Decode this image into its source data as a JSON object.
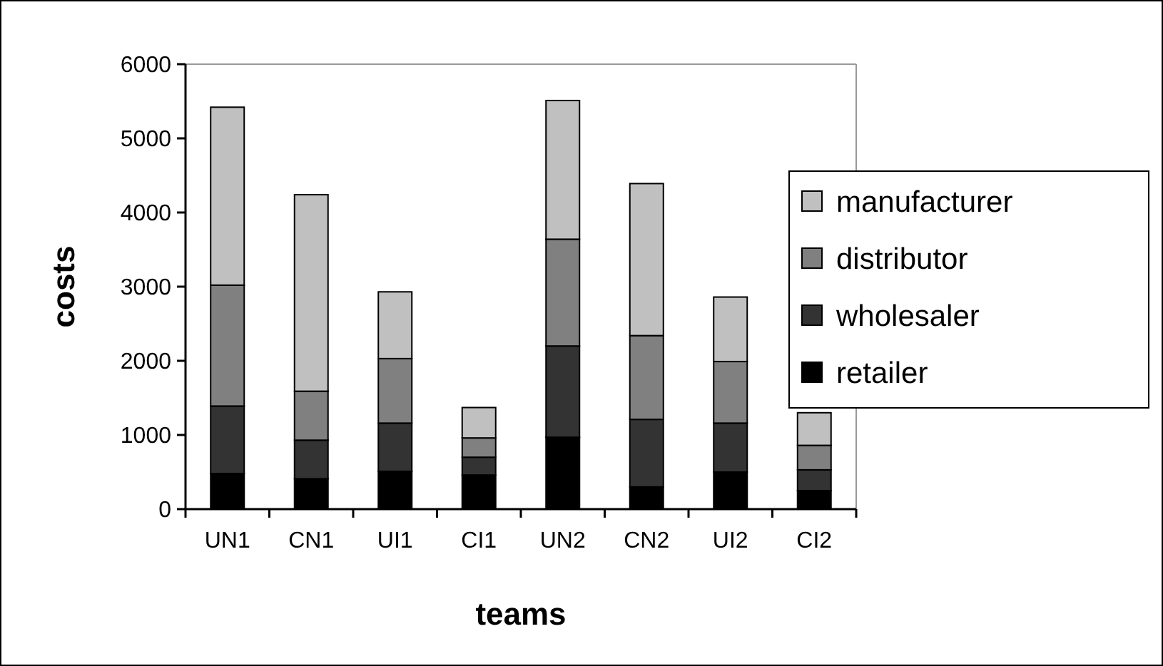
{
  "chart_data": {
    "type": "bar",
    "stacked": true,
    "xlabel": "teams",
    "ylabel": "costs",
    "categories": [
      "UN1",
      "CN1",
      "UI1",
      "CI1",
      "UN2",
      "CN2",
      "UI2",
      "CI2"
    ],
    "series": [
      {
        "name": "retailer",
        "color": "#000000",
        "values": [
          480,
          410,
          510,
          460,
          970,
          300,
          500,
          250
        ]
      },
      {
        "name": "wholesaler",
        "color": "#333333",
        "values": [
          910,
          520,
          650,
          240,
          1230,
          910,
          660,
          280
        ]
      },
      {
        "name": "distributor",
        "color": "#808080",
        "values": [
          1630,
          660,
          870,
          260,
          1440,
          1130,
          830,
          330
        ]
      },
      {
        "name": "manufacturer",
        "color": "#c0c0c0",
        "values": [
          2400,
          2650,
          900,
          410,
          1870,
          2050,
          870,
          440
        ]
      }
    ],
    "ylim": [
      0,
      6000
    ],
    "yticks": [
      0,
      1000,
      2000,
      3000,
      4000,
      5000,
      6000
    ],
    "grid": false,
    "legend": "right"
  }
}
